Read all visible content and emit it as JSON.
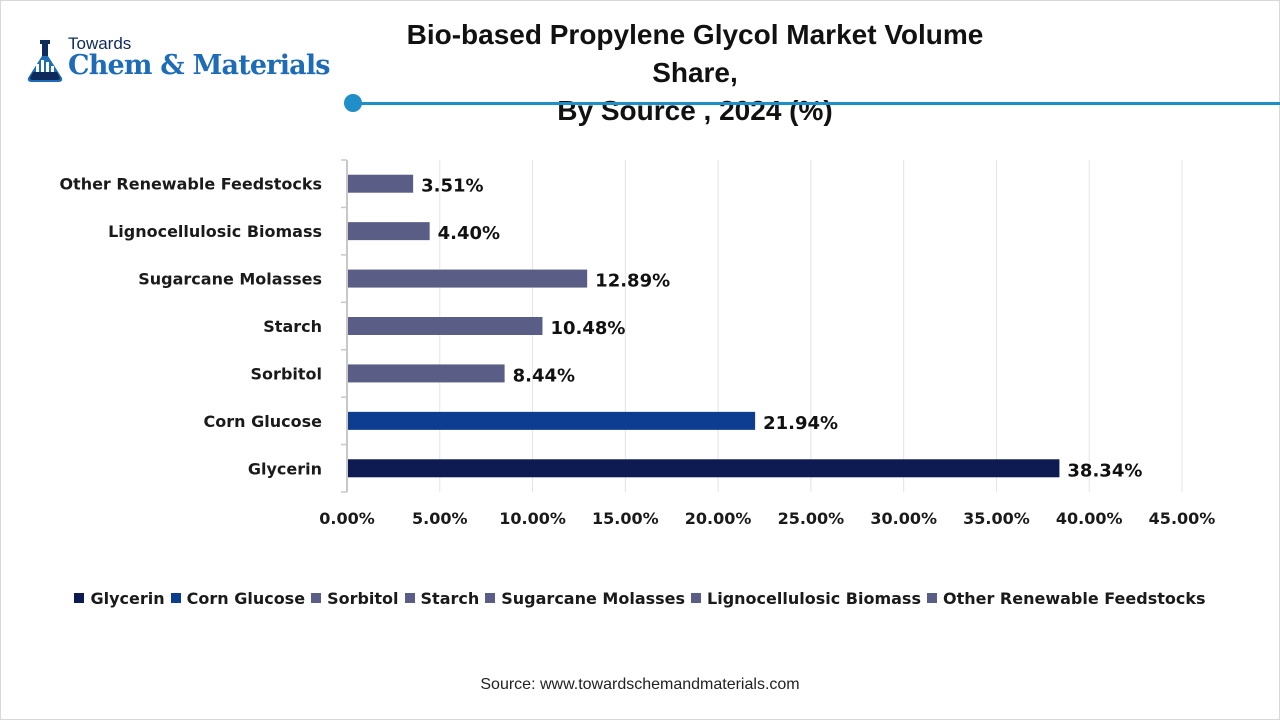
{
  "logo": {
    "line1": "Towards",
    "line2": "Chem & Materials",
    "icon": "flask-lab-icon",
    "colors": {
      "dark": "#0e2a5a",
      "brand": "#1e6bb8"
    }
  },
  "title": {
    "line1": "Bio-based Propylene Glycol Market Volume Share,",
    "line2": "By Source , 2024 (%)"
  },
  "accent_color": "#1f8ec9",
  "chart_data": {
    "type": "bar",
    "orientation": "horizontal",
    "title": "Bio-based Propylene Glycol Market Volume Share, By Source , 2024 (%)",
    "xlabel": "",
    "ylabel": "",
    "xlim": [
      0,
      45
    ],
    "grid": true,
    "categories": [
      "Other Renewable Feedstocks",
      "Lignocellulosic Biomass",
      "Sugarcane Molasses",
      "Starch",
      "Sorbitol",
      "Corn Glucose",
      "Glycerin"
    ],
    "values": [
      3.51,
      4.4,
      12.89,
      10.48,
      8.44,
      21.94,
      38.34
    ],
    "data_labels": [
      "3.51%",
      "4.40%",
      "12.89%",
      "10.48%",
      "8.44%",
      "21.94%",
      "38.34%"
    ],
    "colors": [
      "#5a5e86",
      "#5a5e86",
      "#5a5e86",
      "#5a5e86",
      "#5a5e86",
      "#0d3d91",
      "#0e1a52"
    ],
    "ticks": [
      0,
      5,
      10,
      15,
      20,
      25,
      30,
      35,
      40,
      45
    ],
    "tick_labels": [
      "0.00%",
      "5.00%",
      "10.00%",
      "15.00%",
      "20.00%",
      "25.00%",
      "30.00%",
      "35.00%",
      "40.00%",
      "45.00%"
    ],
    "legend": {
      "position": "bottom",
      "items": [
        {
          "label": "Glycerin",
          "color": "#0e1a52"
        },
        {
          "label": "Corn Glucose",
          "color": "#0d3d91"
        },
        {
          "label": "Sorbitol",
          "color": "#5a5e86"
        },
        {
          "label": "Starch",
          "color": "#5a5e86"
        },
        {
          "label": "Sugarcane Molasses",
          "color": "#5a5e86"
        },
        {
          "label": "Lignocellulosic Biomass",
          "color": "#5a5e86"
        },
        {
          "label": "Other Renewable Feedstocks",
          "color": "#5a5e86"
        }
      ]
    }
  },
  "source": "Source: www.towardschemandmaterials.com"
}
